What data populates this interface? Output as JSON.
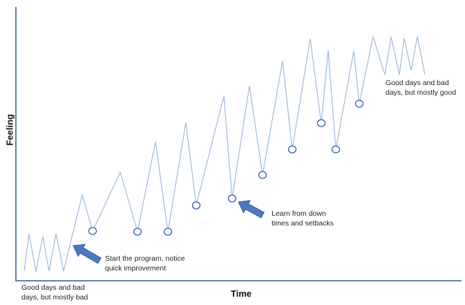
{
  "chart_data": {
    "type": "line",
    "xlabel": "Time",
    "ylabel": "Feeling",
    "grid": false,
    "series": [
      {
        "color": "#9db9dc",
        "points": [
          [
            35,
            392
          ],
          [
            42,
            338
          ],
          [
            52,
            393
          ],
          [
            62,
            342
          ],
          [
            71,
            392
          ],
          [
            81,
            338
          ],
          [
            92,
            392
          ],
          [
            119,
            282
          ],
          [
            134,
            334
          ],
          [
            174,
            249
          ],
          [
            199,
            335
          ],
          [
            225,
            205
          ],
          [
            243,
            335
          ],
          [
            269,
            177
          ],
          [
            284,
            297
          ],
          [
            324,
            139
          ],
          [
            336,
            287
          ],
          [
            361,
            124
          ],
          [
            380,
            253
          ],
          [
            409,
            88
          ],
          [
            423,
            216
          ],
          [
            449,
            56
          ],
          [
            465,
            178
          ],
          [
            475,
            73
          ],
          [
            486,
            216
          ],
          [
            512,
            74
          ],
          [
            520,
            150
          ],
          [
            540,
            53
          ],
          [
            557,
            108
          ],
          [
            566,
            53
          ],
          [
            578,
            108
          ],
          [
            585,
            55
          ],
          [
            595,
            102
          ],
          [
            604,
            53
          ],
          [
            615,
            108
          ]
        ]
      }
    ],
    "markers": {
      "rx": 5.5,
      "ry": 5,
      "color": "#2f5fa8",
      "points": [
        [
          134,
          334
        ],
        [
          199,
          335
        ],
        [
          243,
          335
        ],
        [
          284,
          297
        ],
        [
          336,
          287
        ],
        [
          380,
          253
        ],
        [
          423,
          216
        ],
        [
          465,
          178
        ],
        [
          486,
          216
        ],
        [
          520,
          150
        ]
      ]
    },
    "arrows": [
      {
        "from": [
          144,
          377
        ],
        "to": [
          106,
          355
        ],
        "color": "#4b79bf",
        "edge": "#355f99"
      },
      {
        "from": [
          380,
          311
        ],
        "to": [
          345,
          292
        ],
        "color": "#4b79bf",
        "edge": "#355f99"
      }
    ],
    "annotations": [
      {
        "key": "start_bad",
        "lines": [
          "Good days and bad",
          "days, but mostly bad"
        ]
      },
      {
        "key": "end_good",
        "lines": [
          "Good days and bad",
          "days, but mostly good"
        ]
      },
      {
        "key": "program",
        "lines": [
          "Start the program, notice",
          "quick improvement"
        ]
      },
      {
        "key": "learn",
        "lines": [
          "Learn from down",
          "times and setbacks"
        ]
      }
    ],
    "axis_color": "#5b7fb4"
  }
}
